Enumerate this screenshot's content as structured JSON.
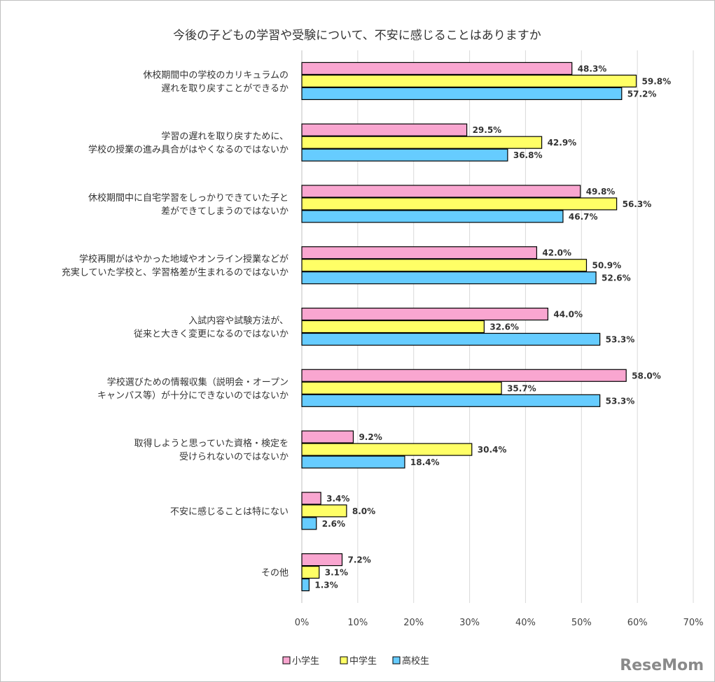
{
  "chart_data": {
    "type": "bar",
    "orientation": "horizontal",
    "title": "今後の子どもの学習や受験について、不安に感じることはありますか",
    "categories": [
      [
        "休校期間中の学校のカリキュラムの",
        "遅れを取り戻すことができるか"
      ],
      [
        "学習の遅れを取り戻すために、",
        "学校の授業の進み具合がはやくなるのではないか"
      ],
      [
        "休校期間中に自宅学習をしっかりできていた子と",
        "差ができてしまうのではないか"
      ],
      [
        "学校再開がはやかった地域やオンライン授業などが",
        "充実していた学校と、学習格差が生まれるのではないか"
      ],
      [
        "入試内容や試験方法が、",
        "従来と大きく変更になるのではないか"
      ],
      [
        "学校選びための情報収集（説明会・オープン",
        "キャンパス等）が十分にできないのではないか"
      ],
      [
        "取得しようと思っていた資格・検定を",
        "受けられないのではないか"
      ],
      [
        "不安に感じることは特にない"
      ],
      [
        "その他"
      ]
    ],
    "series": [
      {
        "name": "小学生",
        "color": "#f9a6d0",
        "values": [
          48.3,
          29.5,
          49.8,
          42.0,
          44.0,
          58.0,
          9.2,
          3.4,
          7.2
        ],
        "labels": [
          "48.3%",
          "29.5%",
          "49.8%",
          "42.0%",
          "44.0%",
          "58.0%",
          "9.2%",
          "3.4%",
          "7.2%"
        ]
      },
      {
        "name": "中学生",
        "color": "#ffff66",
        "values": [
          59.8,
          42.9,
          56.3,
          50.9,
          32.6,
          35.7,
          30.4,
          8.0,
          3.1
        ],
        "labels": [
          "59.8%",
          "42.9%",
          "56.3%",
          "50.9%",
          "32.6%",
          "35.7%",
          "30.4%",
          "8.0%",
          "3.1%"
        ]
      },
      {
        "name": "高校生",
        "color": "#66ccff",
        "values": [
          57.2,
          36.8,
          46.7,
          52.6,
          53.3,
          53.3,
          18.4,
          2.6,
          1.3
        ],
        "labels": [
          "57.2%",
          "36.8%",
          "46.7%",
          "52.6%",
          "53.3%",
          "53.3%",
          "18.4%",
          "2.6%",
          "1.3%"
        ]
      }
    ],
    "xlim": [
      0,
      70
    ],
    "xticks": [
      "0%",
      "10%",
      "20%",
      "30%",
      "40%",
      "50%",
      "60%",
      "70%"
    ],
    "grid": true,
    "legend_position": "bottom"
  },
  "watermark": "ReseMom"
}
